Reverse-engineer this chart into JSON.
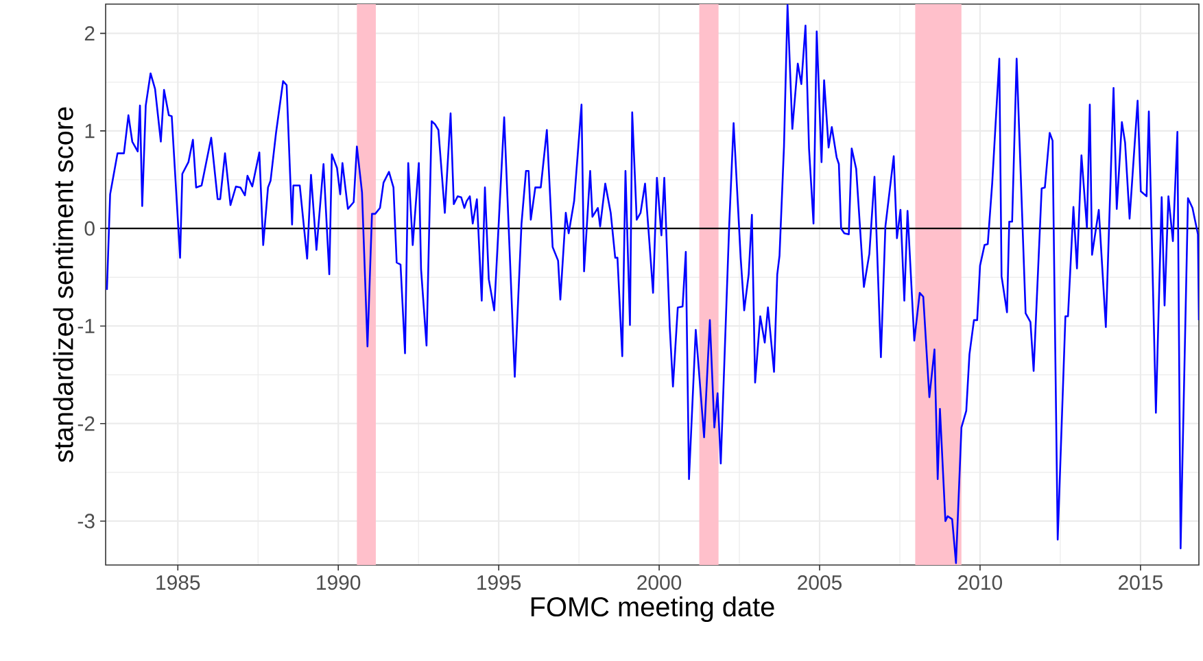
{
  "chart_data": {
    "type": "line",
    "xlabel": "FOMC meeting date",
    "ylabel": "standardized sentiment score",
    "xlim": [
      1982.75,
      2016.82
    ],
    "ylim": [
      -3.45,
      2.3
    ],
    "xticks": [
      1985,
      1990,
      1995,
      2000,
      2005,
      2010,
      2015
    ],
    "yticks": [
      -3,
      -2,
      -1,
      0,
      1,
      2
    ],
    "grid": true,
    "marker": "none",
    "line_style": "solid",
    "bands": [
      {
        "axis": "x",
        "from": 1990.58,
        "to": 1991.17,
        "color": "#ffc0cb"
      },
      {
        "axis": "x",
        "from": 2001.25,
        "to": 2001.85,
        "color": "#ffc0cb"
      },
      {
        "axis": "x",
        "from": 2007.98,
        "to": 2009.42,
        "color": "#ffc0cb"
      }
    ],
    "ref_lines": [
      {
        "axis": "y",
        "value": 0,
        "color": "#000000"
      }
    ],
    "series": [
      {
        "color": "#0000ff",
        "x": [
          1982.79,
          1982.89,
          1983.12,
          1983.32,
          1983.46,
          1983.58,
          1983.75,
          1983.82,
          1983.89,
          1984.0,
          1984.15,
          1984.29,
          1984.47,
          1984.57,
          1984.72,
          1984.81,
          1985.07,
          1985.14,
          1985.33,
          1985.47,
          1985.57,
          1985.74,
          1986.04,
          1986.24,
          1986.32,
          1986.47,
          1986.64,
          1986.81,
          1986.95,
          1987.09,
          1987.17,
          1987.32,
          1987.54,
          1987.66,
          1987.81,
          1987.89,
          1988.06,
          1988.28,
          1988.39,
          1988.56,
          1988.6,
          1988.8,
          1989.03,
          1989.15,
          1989.32,
          1989.54,
          1989.72,
          1989.8,
          1989.96,
          1990.06,
          1990.13,
          1990.3,
          1990.48,
          1990.58,
          1990.74,
          1990.91,
          1991.05,
          1991.15,
          1991.3,
          1991.41,
          1991.58,
          1991.72,
          1991.82,
          1991.94,
          1992.08,
          1992.18,
          1992.32,
          1992.51,
          1992.58,
          1992.75,
          1992.91,
          1993.01,
          1993.12,
          1993.32,
          1993.5,
          1993.6,
          1993.72,
          1993.83,
          1993.93,
          1994.0,
          1994.1,
          1994.19,
          1994.32,
          1994.47,
          1994.57,
          1994.69,
          1994.86,
          1995.17,
          1995.5,
          1995.71,
          1995.85,
          1995.93,
          1996.0,
          1996.14,
          1996.31,
          1996.5,
          1996.68,
          1996.85,
          1996.92,
          1997.09,
          1997.18,
          1997.35,
          1997.58,
          1997.66,
          1997.85,
          1997.92,
          1998.09,
          1998.16,
          1998.32,
          1998.49,
          1998.63,
          1998.7,
          1998.85,
          1998.95,
          1999.09,
          1999.16,
          1999.3,
          1999.42,
          1999.56,
          1999.7,
          1999.81,
          1999.93,
          2000.07,
          2000.16,
          2000.33,
          2000.43,
          2000.58,
          2000.73,
          2000.83,
          2000.93,
          2001.14,
          2001.4,
          2001.58,
          2001.72,
          2001.82,
          2001.92,
          2002.18,
          2002.32,
          2002.54,
          2002.65,
          2002.79,
          2002.89,
          2002.99,
          2003.15,
          2003.29,
          2003.39,
          2003.58,
          2003.68,
          2003.75,
          2003.89,
          2004.0,
          2004.15,
          2004.32,
          2004.43,
          2004.56,
          2004.67,
          2004.81,
          2004.91,
          2005.06,
          2005.14,
          2005.28,
          2005.38,
          2005.53,
          2005.6,
          2005.67,
          2005.77,
          2005.91,
          2006.0,
          2006.14,
          2006.38,
          2006.55,
          2006.71,
          2006.91,
          2007.05,
          2007.31,
          2007.41,
          2007.52,
          2007.64,
          2007.74,
          2007.95,
          2008.12,
          2008.23,
          2008.42,
          2008.58,
          2008.68,
          2008.75,
          2008.92,
          2008.99,
          2009.13,
          2009.25,
          2009.42,
          2009.57,
          2009.67,
          2009.81,
          2009.91,
          2010.0,
          2010.14,
          2010.24,
          2010.38,
          2010.6,
          2010.67,
          2010.84,
          2010.91,
          2011.0,
          2011.14,
          2011.42,
          2011.57,
          2011.67,
          2011.92,
          2012.02,
          2012.17,
          2012.26,
          2012.42,
          2012.66,
          2012.74,
          2012.91,
          2013.02,
          2013.16,
          2013.33,
          2013.42,
          2013.49,
          2013.7,
          2013.92,
          2014.16,
          2014.26,
          2014.42,
          2014.52,
          2014.66,
          2014.91,
          2015.01,
          2015.19,
          2015.26,
          2015.48,
          2015.66,
          2015.75,
          2015.87,
          2016.01,
          2016.15,
          2016.25,
          2016.48,
          2016.62,
          2016.79,
          2016.82
        ],
        "values": [
          -0.63,
          0.35,
          0.77,
          0.77,
          1.16,
          0.89,
          0.79,
          1.26,
          0.23,
          1.26,
          1.59,
          1.43,
          0.89,
          1.42,
          1.16,
          1.15,
          -0.3,
          0.56,
          0.68,
          0.91,
          0.42,
          0.44,
          0.93,
          0.3,
          0.3,
          0.77,
          0.24,
          0.43,
          0.42,
          0.34,
          0.54,
          0.43,
          0.78,
          -0.17,
          0.42,
          0.49,
          0.98,
          1.51,
          1.47,
          0.04,
          0.44,
          0.44,
          -0.31,
          0.55,
          -0.22,
          0.66,
          -0.47,
          0.76,
          0.62,
          0.35,
          0.67,
          0.2,
          0.27,
          0.84,
          0.37,
          -1.21,
          0.15,
          0.15,
          0.21,
          0.47,
          0.58,
          0.42,
          -0.35,
          -0.37,
          -1.28,
          0.67,
          -0.17,
          0.67,
          -0.42,
          -1.2,
          1.1,
          1.07,
          1.01,
          0.16,
          1.18,
          0.25,
          0.33,
          0.32,
          0.21,
          0.28,
          0.33,
          0.05,
          0.3,
          -0.74,
          0.42,
          -0.52,
          -0.84,
          1.14,
          -1.52,
          0.05,
          0.59,
          0.59,
          0.09,
          0.42,
          0.42,
          1.01,
          -0.19,
          -0.33,
          -0.73,
          0.16,
          -0.05,
          0.28,
          1.27,
          -0.44,
          0.59,
          0.12,
          0.21,
          0.02,
          0.46,
          0.16,
          -0.3,
          -0.3,
          -1.31,
          0.59,
          -0.99,
          1.19,
          0.09,
          0.16,
          0.46,
          -0.16,
          -0.66,
          0.52,
          -0.07,
          0.52,
          -1.01,
          -1.62,
          -0.81,
          -0.8,
          -0.24,
          -2.57,
          -1.04,
          -2.14,
          -0.94,
          -2.04,
          -1.69,
          -2.41,
          0.01,
          1.08,
          -0.3,
          -0.84,
          -0.47,
          0.14,
          -1.58,
          -0.9,
          -1.17,
          -0.81,
          -1.47,
          -0.47,
          -0.28,
          0.84,
          2.29,
          1.02,
          1.69,
          1.48,
          2.08,
          0.82,
          0.05,
          2.02,
          0.68,
          1.52,
          0.83,
          1.04,
          0.73,
          0.66,
          0.0,
          -0.05,
          -0.06,
          0.82,
          0.61,
          -0.6,
          -0.26,
          0.53,
          -1.32,
          0.02,
          0.74,
          -0.1,
          0.19,
          -0.74,
          0.18,
          -1.15,
          -0.66,
          -0.7,
          -1.73,
          -1.24,
          -2.57,
          -1.85,
          -3.0,
          -2.95,
          -2.98,
          -3.43,
          -2.04,
          -1.87,
          -1.29,
          -0.94,
          -0.94,
          -0.38,
          -0.17,
          -0.16,
          0.47,
          1.74,
          -0.49,
          -0.86,
          0.07,
          0.07,
          1.74,
          -0.87,
          -0.96,
          -1.46,
          0.41,
          0.42,
          0.98,
          0.9,
          -3.19,
          -0.9,
          -0.9,
          0.22,
          -0.41,
          0.75,
          0.01,
          1.27,
          -0.27,
          0.19,
          -1.01,
          1.44,
          0.2,
          1.09,
          0.88,
          0.1,
          1.31,
          0.38,
          0.33,
          1.2,
          -1.89,
          0.32,
          -0.79,
          0.33,
          -0.13,
          0.99,
          -3.28,
          0.31,
          0.21,
          -0.06,
          -0.94
        ]
      }
    ]
  }
}
